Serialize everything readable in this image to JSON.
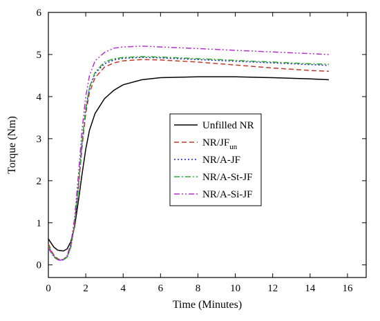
{
  "chart_data": {
    "type": "line",
    "xlabel": "Time (Minutes)",
    "ylabel": "Torque (Nm)",
    "xlim": [
      0,
      17
    ],
    "ylim": [
      -0.3,
      6
    ],
    "xticks": [
      0,
      2,
      4,
      6,
      8,
      10,
      12,
      14,
      16
    ],
    "yticks": [
      0,
      1,
      2,
      3,
      4,
      5,
      6
    ],
    "x_tick_labels": [
      "0",
      "2",
      "4",
      "6",
      "8",
      "10",
      "12",
      "14",
      "16"
    ],
    "y_tick_labels": [
      "0",
      "1",
      "2",
      "3",
      "4",
      "5",
      "6"
    ],
    "legend_position": "center-right",
    "series": [
      {
        "name": "Unfilled NR",
        "label_main": "Unfilled NR",
        "label_sub": "",
        "color": "#000000",
        "dash": "solid",
        "points": [
          [
            0,
            0.62
          ],
          [
            0.1,
            0.55
          ],
          [
            0.3,
            0.42
          ],
          [
            0.5,
            0.35
          ],
          [
            0.8,
            0.33
          ],
          [
            1.0,
            0.38
          ],
          [
            1.2,
            0.55
          ],
          [
            1.4,
            0.9
          ],
          [
            1.6,
            1.5
          ],
          [
            1.8,
            2.15
          ],
          [
            2.0,
            2.75
          ],
          [
            2.2,
            3.2
          ],
          [
            2.5,
            3.6
          ],
          [
            3.0,
            3.95
          ],
          [
            3.5,
            4.15
          ],
          [
            4.0,
            4.28
          ],
          [
            5.0,
            4.4
          ],
          [
            6.0,
            4.45
          ],
          [
            8.0,
            4.47
          ],
          [
            10.0,
            4.47
          ],
          [
            12.0,
            4.45
          ],
          [
            14.0,
            4.42
          ],
          [
            15.0,
            4.4
          ]
        ]
      },
      {
        "name": "NR/JF_un",
        "label_main": "NR/JF",
        "label_sub": "un",
        "color": "#c0392b",
        "dash": "dashed",
        "points": [
          [
            0,
            0.5
          ],
          [
            0.2,
            0.3
          ],
          [
            0.4,
            0.18
          ],
          [
            0.6,
            0.12
          ],
          [
            0.8,
            0.13
          ],
          [
            1.0,
            0.2
          ],
          [
            1.2,
            0.45
          ],
          [
            1.4,
            0.95
          ],
          [
            1.6,
            1.8
          ],
          [
            1.8,
            2.8
          ],
          [
            2.0,
            3.6
          ],
          [
            2.2,
            4.1
          ],
          [
            2.5,
            4.45
          ],
          [
            3.0,
            4.7
          ],
          [
            3.5,
            4.8
          ],
          [
            4.0,
            4.85
          ],
          [
            5.0,
            4.88
          ],
          [
            6.0,
            4.87
          ],
          [
            8.0,
            4.82
          ],
          [
            10.0,
            4.75
          ],
          [
            12.0,
            4.68
          ],
          [
            14.0,
            4.62
          ],
          [
            15.0,
            4.6
          ]
        ]
      },
      {
        "name": "NR/A-JF",
        "label_main": "NR/A-JF",
        "label_sub": "",
        "color": "#1a1ad6",
        "dash": "dotted",
        "points": [
          [
            0,
            0.45
          ],
          [
            0.2,
            0.28
          ],
          [
            0.4,
            0.16
          ],
          [
            0.6,
            0.11
          ],
          [
            0.8,
            0.12
          ],
          [
            1.0,
            0.18
          ],
          [
            1.2,
            0.42
          ],
          [
            1.4,
            0.95
          ],
          [
            1.6,
            1.85
          ],
          [
            1.8,
            2.9
          ],
          [
            2.0,
            3.7
          ],
          [
            2.2,
            4.2
          ],
          [
            2.5,
            4.55
          ],
          [
            3.0,
            4.78
          ],
          [
            3.5,
            4.87
          ],
          [
            4.0,
            4.91
          ],
          [
            5.0,
            4.93
          ],
          [
            6.0,
            4.92
          ],
          [
            8.0,
            4.88
          ],
          [
            10.0,
            4.84
          ],
          [
            12.0,
            4.8
          ],
          [
            14.0,
            4.76
          ],
          [
            15.0,
            4.74
          ]
        ]
      },
      {
        "name": "NR/A-St-JF",
        "label_main": "NR/A-St-JF",
        "label_sub": "",
        "color": "#2aa82a",
        "dash": "dashdot",
        "points": [
          [
            0,
            0.45
          ],
          [
            0.2,
            0.27
          ],
          [
            0.4,
            0.15
          ],
          [
            0.6,
            0.11
          ],
          [
            0.8,
            0.12
          ],
          [
            1.0,
            0.18
          ],
          [
            1.2,
            0.42
          ],
          [
            1.4,
            0.95
          ],
          [
            1.6,
            1.85
          ],
          [
            1.8,
            2.92
          ],
          [
            2.0,
            3.72
          ],
          [
            2.2,
            4.22
          ],
          [
            2.5,
            4.58
          ],
          [
            3.0,
            4.82
          ],
          [
            3.5,
            4.9
          ],
          [
            4.0,
            4.93
          ],
          [
            5.0,
            4.95
          ],
          [
            6.0,
            4.94
          ],
          [
            8.0,
            4.9
          ],
          [
            10.0,
            4.86
          ],
          [
            12.0,
            4.82
          ],
          [
            14.0,
            4.78
          ],
          [
            15.0,
            4.77
          ]
        ]
      },
      {
        "name": "NR/A-Si-JF",
        "label_main": "NR/A-Si-JF",
        "label_sub": "",
        "color": "#b030c8",
        "dash": "dashdotdot",
        "points": [
          [
            0,
            0.4
          ],
          [
            0.2,
            0.25
          ],
          [
            0.4,
            0.14
          ],
          [
            0.6,
            0.11
          ],
          [
            0.8,
            0.13
          ],
          [
            1.0,
            0.22
          ],
          [
            1.2,
            0.5
          ],
          [
            1.4,
            1.1
          ],
          [
            1.6,
            2.1
          ],
          [
            1.8,
            3.2
          ],
          [
            2.0,
            4.0
          ],
          [
            2.2,
            4.5
          ],
          [
            2.5,
            4.85
          ],
          [
            3.0,
            5.05
          ],
          [
            3.5,
            5.15
          ],
          [
            4.0,
            5.18
          ],
          [
            5.0,
            5.2
          ],
          [
            6.0,
            5.18
          ],
          [
            8.0,
            5.14
          ],
          [
            10.0,
            5.1
          ],
          [
            12.0,
            5.06
          ],
          [
            14.0,
            5.02
          ],
          [
            15.0,
            5.0
          ]
        ]
      }
    ]
  }
}
